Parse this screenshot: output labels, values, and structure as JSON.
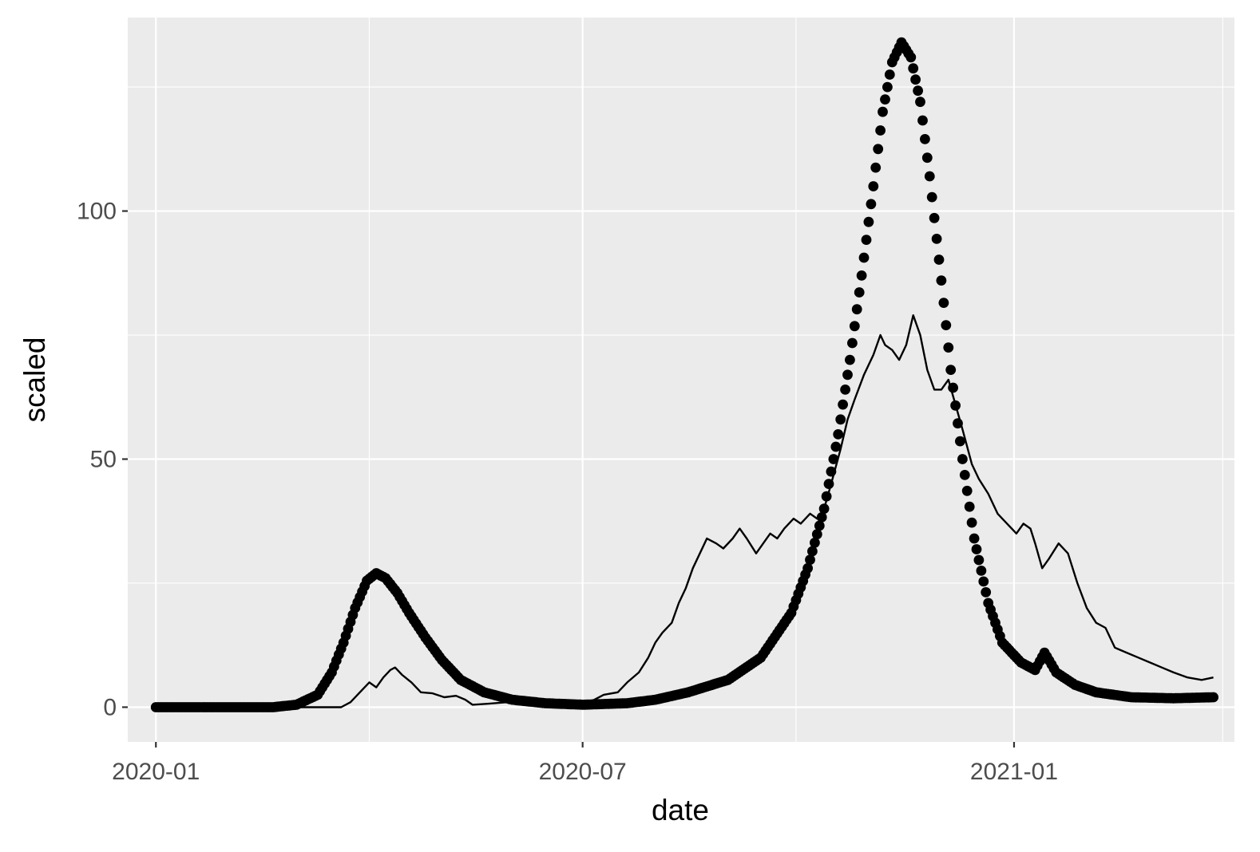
{
  "chart_data": {
    "type": "scatter",
    "xlabel": "date",
    "ylabel": "scaled",
    "x_tick_labels": [
      "2020-01",
      "2020-07",
      "2021-01"
    ],
    "y_tick_labels": [
      "0",
      "50",
      "100"
    ],
    "xlim": [
      "2019-12-20",
      "2021-04-05"
    ],
    "ylim": [
      -7,
      139
    ],
    "grid": true,
    "background": "#EBEBEB",
    "grid_color": "#FFFFFF",
    "series": [
      {
        "mark": "point",
        "color": "#000000",
        "points": [
          [
            "2020-01-01",
            0
          ],
          [
            "2020-02-01",
            0
          ],
          [
            "2020-02-20",
            0
          ],
          [
            "2020-03-01",
            0.5
          ],
          [
            "2020-03-10",
            2.5
          ],
          [
            "2020-03-16",
            7
          ],
          [
            "2020-03-21",
            13
          ],
          [
            "2020-03-26",
            20
          ],
          [
            "2020-03-31",
            25.5
          ],
          [
            "2020-04-04",
            27
          ],
          [
            "2020-04-08",
            26
          ],
          [
            "2020-04-13",
            23
          ],
          [
            "2020-04-18",
            19
          ],
          [
            "2020-04-25",
            14
          ],
          [
            "2020-05-02",
            9.5
          ],
          [
            "2020-05-10",
            5.5
          ],
          [
            "2020-05-20",
            3
          ],
          [
            "2020-06-01",
            1.5
          ],
          [
            "2020-06-15",
            0.8
          ],
          [
            "2020-07-01",
            0.5
          ],
          [
            "2020-07-20",
            0.8
          ],
          [
            "2020-08-01",
            1.5
          ],
          [
            "2020-08-15",
            3
          ],
          [
            "2020-09-01",
            5.5
          ],
          [
            "2020-09-15",
            10
          ],
          [
            "2020-09-28",
            19
          ],
          [
            "2020-10-05",
            28
          ],
          [
            "2020-10-12",
            40
          ],
          [
            "2020-10-18",
            55
          ],
          [
            "2020-10-23",
            70
          ],
          [
            "2020-10-28",
            87
          ],
          [
            "2020-11-02",
            105
          ],
          [
            "2020-11-06",
            120
          ],
          [
            "2020-11-10",
            130
          ],
          [
            "2020-11-14",
            134
          ],
          [
            "2020-11-18",
            131
          ],
          [
            "2020-11-22",
            122
          ],
          [
            "2020-11-26",
            107
          ],
          [
            "2020-12-01",
            86
          ],
          [
            "2020-12-05",
            68
          ],
          [
            "2020-12-10",
            50
          ],
          [
            "2020-12-15",
            34
          ],
          [
            "2020-12-21",
            21
          ],
          [
            "2020-12-27",
            13
          ],
          [
            "2021-01-04",
            9
          ],
          [
            "2021-01-10",
            7.5
          ],
          [
            "2021-01-14",
            11
          ],
          [
            "2021-01-19",
            7
          ],
          [
            "2021-01-27",
            4.5
          ],
          [
            "2021-02-05",
            3
          ],
          [
            "2021-02-20",
            2
          ],
          [
            "2021-03-10",
            1.8
          ],
          [
            "2021-03-27",
            2
          ]
        ]
      },
      {
        "mark": "line",
        "color": "#000000",
        "points": [
          [
            "2020-01-01",
            0
          ],
          [
            "2020-03-20",
            0
          ],
          [
            "2020-03-24",
            1
          ],
          [
            "2020-03-28",
            3
          ],
          [
            "2020-04-01",
            5
          ],
          [
            "2020-04-04",
            4
          ],
          [
            "2020-04-07",
            6
          ],
          [
            "2020-04-10",
            7.5
          ],
          [
            "2020-04-12",
            8
          ],
          [
            "2020-04-15",
            6.5
          ],
          [
            "2020-04-19",
            5
          ],
          [
            "2020-04-23",
            3
          ],
          [
            "2020-04-28",
            2.8
          ],
          [
            "2020-05-03",
            2
          ],
          [
            "2020-05-08",
            2.3
          ],
          [
            "2020-05-12",
            1.5
          ],
          [
            "2020-05-15",
            0.5
          ],
          [
            "2020-05-22",
            0.7
          ],
          [
            "2020-05-30",
            1
          ],
          [
            "2020-06-08",
            0.5
          ],
          [
            "2020-06-20",
            0.6
          ],
          [
            "2020-07-01",
            0.8
          ],
          [
            "2020-07-06",
            1.5
          ],
          [
            "2020-07-10",
            2.5
          ],
          [
            "2020-07-16",
            3
          ],
          [
            "2020-07-20",
            5
          ],
          [
            "2020-07-25",
            7
          ],
          [
            "2020-07-29",
            10
          ],
          [
            "2020-08-01",
            13
          ],
          [
            "2020-08-04",
            15
          ],
          [
            "2020-08-08",
            17
          ],
          [
            "2020-08-11",
            21
          ],
          [
            "2020-08-14",
            24
          ],
          [
            "2020-08-17",
            28
          ],
          [
            "2020-08-20",
            31
          ],
          [
            "2020-08-23",
            34
          ],
          [
            "2020-08-27",
            33
          ],
          [
            "2020-08-30",
            32
          ],
          [
            "2020-09-03",
            34
          ],
          [
            "2020-09-06",
            36
          ],
          [
            "2020-09-09",
            34
          ],
          [
            "2020-09-13",
            31
          ],
          [
            "2020-09-16",
            33
          ],
          [
            "2020-09-19",
            35
          ],
          [
            "2020-09-22",
            34
          ],
          [
            "2020-09-25",
            36
          ],
          [
            "2020-09-29",
            38
          ],
          [
            "2020-10-02",
            37
          ],
          [
            "2020-10-06",
            39
          ],
          [
            "2020-10-09",
            38
          ],
          [
            "2020-10-12",
            40
          ],
          [
            "2020-10-15",
            45
          ],
          [
            "2020-10-19",
            52
          ],
          [
            "2020-10-22",
            58
          ],
          [
            "2020-10-25",
            62
          ],
          [
            "2020-10-29",
            67
          ],
          [
            "2020-11-02",
            71
          ],
          [
            "2020-11-05",
            75
          ],
          [
            "2020-11-07",
            73
          ],
          [
            "2020-11-10",
            72
          ],
          [
            "2020-11-13",
            70
          ],
          [
            "2020-11-16",
            73
          ],
          [
            "2020-11-19",
            79
          ],
          [
            "2020-11-22",
            75
          ],
          [
            "2020-11-25",
            68
          ],
          [
            "2020-11-28",
            64
          ],
          [
            "2020-12-01",
            64
          ],
          [
            "2020-12-04",
            66
          ],
          [
            "2020-12-07",
            61
          ],
          [
            "2020-12-10",
            56
          ],
          [
            "2020-12-14",
            49
          ],
          [
            "2020-12-17",
            46
          ],
          [
            "2020-12-21",
            43
          ],
          [
            "2020-12-25",
            39
          ],
          [
            "2020-12-29",
            37
          ],
          [
            "2021-01-02",
            35
          ],
          [
            "2021-01-05",
            37
          ],
          [
            "2021-01-08",
            36
          ],
          [
            "2021-01-10",
            33
          ],
          [
            "2021-01-13",
            28
          ],
          [
            "2021-01-16",
            30
          ],
          [
            "2021-01-20",
            33
          ],
          [
            "2021-01-24",
            31
          ],
          [
            "2021-01-28",
            25
          ],
          [
            "2021-02-01",
            20
          ],
          [
            "2021-02-05",
            17
          ],
          [
            "2021-02-09",
            16
          ],
          [
            "2021-02-13",
            12
          ],
          [
            "2021-02-18",
            11
          ],
          [
            "2021-02-23",
            10
          ],
          [
            "2021-02-28",
            9
          ],
          [
            "2021-03-05",
            8
          ],
          [
            "2021-03-10",
            7
          ],
          [
            "2021-03-16",
            6
          ],
          [
            "2021-03-22",
            5.5
          ],
          [
            "2021-03-27",
            6
          ]
        ]
      }
    ]
  }
}
